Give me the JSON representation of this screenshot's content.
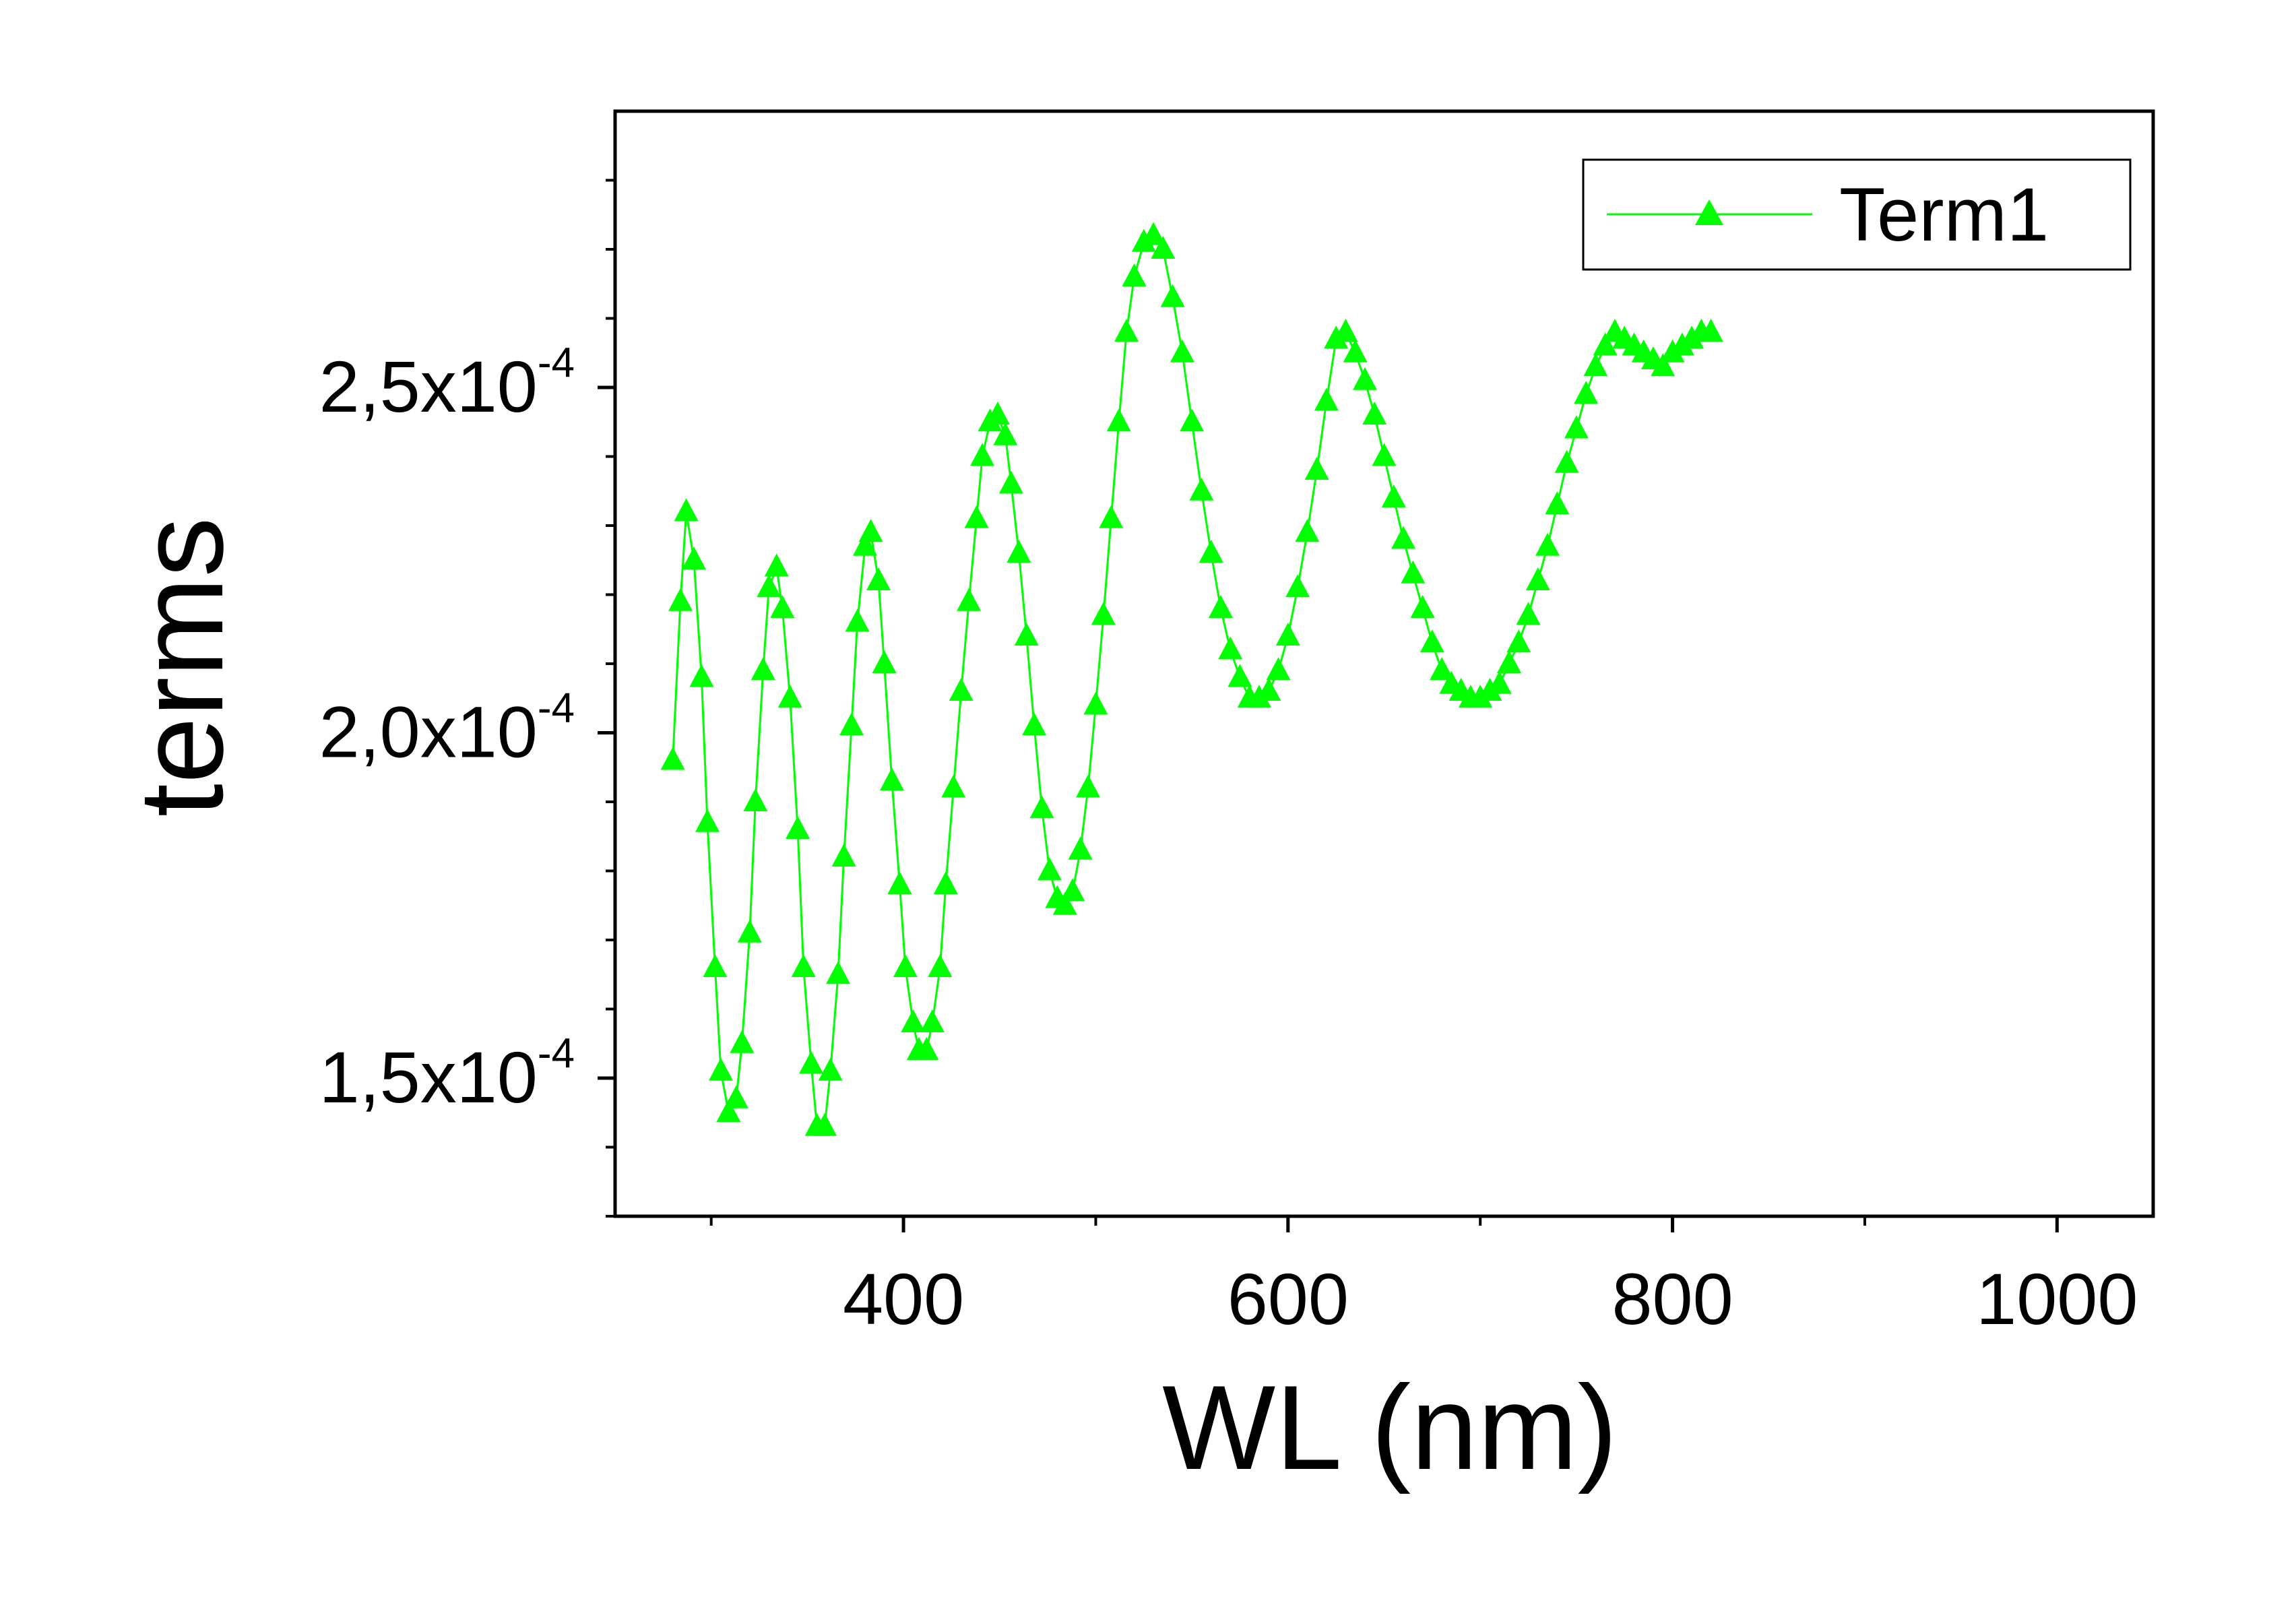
{
  "chart_data": {
    "type": "line",
    "xlabel": "WL  (nm)",
    "ylabel": "terms",
    "xlim": [
      250,
      1050
    ],
    "ylim": [
      0.00013,
      0.00029
    ],
    "x_ticks": [
      {
        "value": 400,
        "label": "400"
      },
      {
        "value": 600,
        "label": "600"
      },
      {
        "value": 800,
        "label": "800"
      },
      {
        "value": 1000,
        "label": "1000"
      }
    ],
    "x_minor_ticks": [
      300,
      500,
      700,
      900
    ],
    "y_ticks": [
      {
        "value": 0.00015,
        "mantissa": "1,5x10",
        "exponent": "-4"
      },
      {
        "value": 0.0002,
        "mantissa": "2,0x10",
        "exponent": "-4"
      },
      {
        "value": 0.00025,
        "mantissa": "2,5x10",
        "exponent": "-4"
      }
    ],
    "y_minor_ticks": [
      0.00013,
      0.00014,
      0.00016,
      0.00017,
      0.00018,
      0.00019,
      0.00021,
      0.00022,
      0.00023,
      0.00024,
      0.00026,
      0.00027,
      0.00028
    ],
    "grid": false,
    "legend_position": "top-right",
    "series": [
      {
        "name": "Term1",
        "color": "#00ff00",
        "marker": "triangle-up",
        "x": [
          280,
          284,
          287,
          291,
          295,
          298,
          302,
          305,
          309,
          313,
          316,
          320,
          323,
          327,
          330,
          334,
          337,
          341,
          345,
          348,
          352,
          355,
          359,
          362,
          366,
          369,
          373,
          376,
          380,
          383,
          387,
          390,
          394,
          398,
          401,
          405,
          408,
          412,
          415,
          419,
          422,
          426,
          430,
          434,
          438,
          441,
          445,
          449,
          453,
          456,
          460,
          464,
          468,
          472,
          476,
          480,
          484,
          488,
          492,
          496,
          500,
          504,
          508,
          512,
          516,
          520,
          525,
          530,
          535,
          540,
          545,
          550,
          555,
          560,
          565,
          570,
          575,
          580,
          585,
          590,
          595,
          600,
          605,
          610,
          615,
          620,
          625,
          630,
          635,
          640,
          645,
          650,
          655,
          660,
          665,
          670,
          675,
          680,
          685,
          690,
          695,
          700,
          705,
          710,
          715,
          720,
          725,
          730,
          735,
          740,
          745,
          750,
          755,
          760,
          765,
          770,
          775,
          780,
          785,
          790,
          795,
          800,
          805,
          810,
          815,
          820
        ],
        "y": [
          0.000196,
          0.000219,
          0.000232,
          0.000225,
          0.000208,
          0.000187,
          0.000166,
          0.000151,
          0.000145,
          0.000147,
          0.000155,
          0.000171,
          0.00019,
          0.000209,
          0.000221,
          0.000224,
          0.000218,
          0.000205,
          0.000186,
          0.000166,
          0.000152,
          0.000143,
          0.000143,
          0.000151,
          0.000165,
          0.000182,
          0.000201,
          0.000216,
          0.000227,
          0.000229,
          0.000222,
          0.00021,
          0.000193,
          0.000178,
          0.000166,
          0.000158,
          0.000154,
          0.000154,
          0.000158,
          0.000166,
          0.000178,
          0.000192,
          0.000206,
          0.000219,
          0.000231,
          0.00024,
          0.000245,
          0.000246,
          0.000243,
          0.000236,
          0.000226,
          0.000214,
          0.000201,
          0.000189,
          0.00018,
          0.000176,
          0.000175,
          0.000177,
          0.000183,
          0.000192,
          0.000204,
          0.000217,
          0.000231,
          0.000245,
          0.000258,
          0.000266,
          0.000271,
          0.000272,
          0.00027,
          0.000263,
          0.000255,
          0.000245,
          0.000235,
          0.000226,
          0.000218,
          0.000212,
          0.000208,
          0.000205,
          0.000205,
          0.000206,
          0.000209,
          0.000214,
          0.000221,
          0.000229,
          0.000238,
          0.000248,
          0.000257,
          0.000258,
          0.000255,
          0.000251,
          0.000246,
          0.00024,
          0.000234,
          0.000228,
          0.000223,
          0.000218,
          0.000213,
          0.000209,
          0.000207,
          0.000206,
          0.000205,
          0.000205,
          0.000206,
          0.000207,
          0.00021,
          0.000213,
          0.000217,
          0.000222,
          0.000227,
          0.000233,
          0.000239,
          0.000244,
          0.000249,
          0.000253,
          0.000256,
          0.000258,
          0.000257,
          0.000256,
          0.000255,
          0.000254,
          0.000253,
          0.000255,
          0.000256,
          0.000257,
          0.000258,
          0.000258
        ]
      }
    ]
  },
  "legend": {
    "label": "Term1"
  }
}
